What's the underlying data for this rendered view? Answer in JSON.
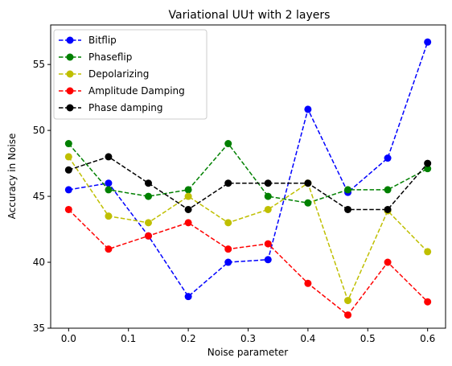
{
  "chart_data": {
    "type": "line",
    "title": "Variational UU† with 2 layers",
    "xlabel": "Noise parameter",
    "ylabel": "Accuracy in Noise",
    "x": [
      0.0,
      0.0667,
      0.1333,
      0.2,
      0.2667,
      0.3333,
      0.4,
      0.4667,
      0.5333,
      0.6
    ],
    "xlim": [
      -0.03,
      0.63
    ],
    "ylim": [
      35,
      58
    ],
    "xticks": [
      0.0,
      0.1,
      0.2,
      0.3,
      0.4,
      0.5,
      0.6
    ],
    "xtick_labels": [
      "0.0",
      "0.1",
      "0.2",
      "0.3",
      "0.4",
      "0.5",
      "0.6"
    ],
    "yticks": [
      35,
      40,
      45,
      50,
      55
    ],
    "ytick_labels": [
      "35",
      "40",
      "45",
      "50",
      "55"
    ],
    "grid": false,
    "legend_position": "top-left",
    "series": [
      {
        "name": "Bitflip",
        "color": "#0000ff",
        "values": [
          45.5,
          46.0,
          42.0,
          37.4,
          40.0,
          40.2,
          51.6,
          45.3,
          47.9,
          56.7
        ]
      },
      {
        "name": "Phaseflip",
        "color": "#008000",
        "values": [
          49.0,
          45.5,
          45.0,
          45.5,
          49.0,
          45.0,
          44.5,
          45.5,
          45.5,
          47.1
        ]
      },
      {
        "name": "Depolarizing",
        "color": "#bfbf00",
        "values": [
          48.0,
          43.5,
          43.0,
          45.0,
          43.0,
          44.0,
          46.0,
          37.1,
          43.9,
          40.8
        ]
      },
      {
        "name": "Amplitude Damping",
        "color": "#ff0000",
        "values": [
          44.0,
          41.0,
          42.0,
          43.0,
          41.0,
          41.4,
          38.4,
          36.0,
          40.0,
          37.0
        ]
      },
      {
        "name": "Phase damping",
        "color": "#000000",
        "values": [
          47.0,
          48.0,
          46.0,
          44.0,
          46.0,
          46.0,
          46.0,
          44.0,
          44.0,
          47.5
        ]
      }
    ]
  }
}
